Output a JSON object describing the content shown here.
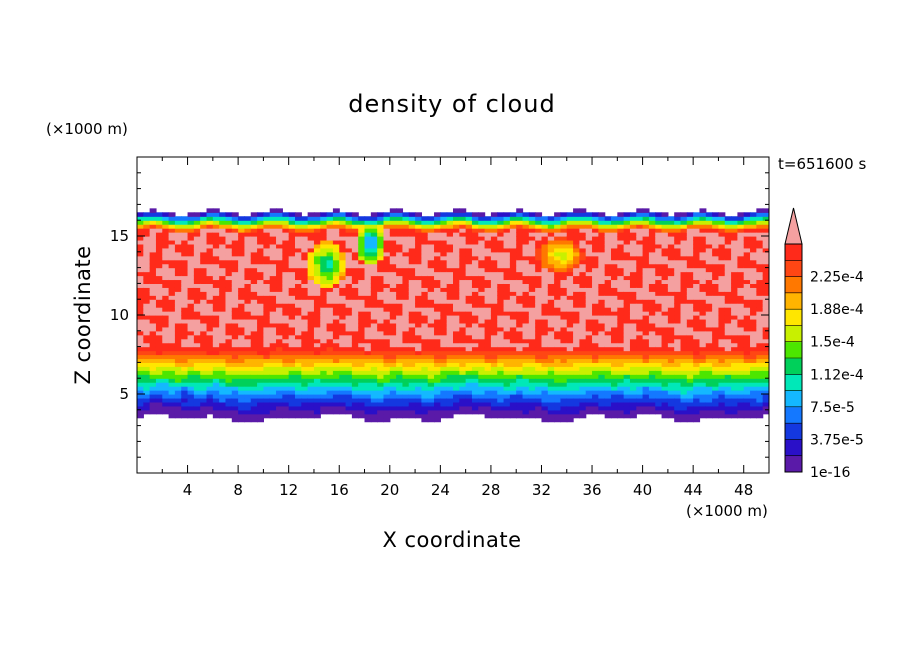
{
  "chart_data": {
    "type": "heatmap",
    "title": "density of cloud",
    "xlabel": "X coordinate",
    "ylabel": "Z coordinate",
    "x_unit": "(×1000 m)",
    "y_unit": "(×1000 m)",
    "time_label": "t=651600 s",
    "xlim": [
      0,
      50
    ],
    "ylim": [
      0,
      20
    ],
    "x_ticks": [
      4,
      8,
      12,
      16,
      20,
      24,
      28,
      32,
      36,
      40,
      44,
      48
    ],
    "y_ticks": [
      5,
      10,
      15
    ],
    "colorbar": {
      "labels": [
        "1e-16",
        "3.75e-5",
        "7.5e-5",
        "1.12e-4",
        "1.5e-4",
        "1.88e-4",
        "2.25e-4"
      ],
      "levels": [
        0,
        3.75e-05,
        7.5e-05,
        0.0001125,
        0.00015,
        0.0001875,
        0.000225
      ],
      "colors": [
        "#5a1aa8",
        "#2a10c8",
        "#1438e0",
        "#1478ff",
        "#14b8ff",
        "#00e8b8",
        "#00d05a",
        "#4ce600",
        "#c8f000",
        "#ffe600",
        "#ffb400",
        "#ff7800",
        "#ff4614",
        "#ff2a1a"
      ],
      "extend_color": "#f4a0a0"
    },
    "cloud_layer": {
      "base_km": 3.5,
      "top_km": 16.5,
      "core_range_km": [
        7.5,
        15.5
      ],
      "peak_level": 0.000235
    }
  }
}
